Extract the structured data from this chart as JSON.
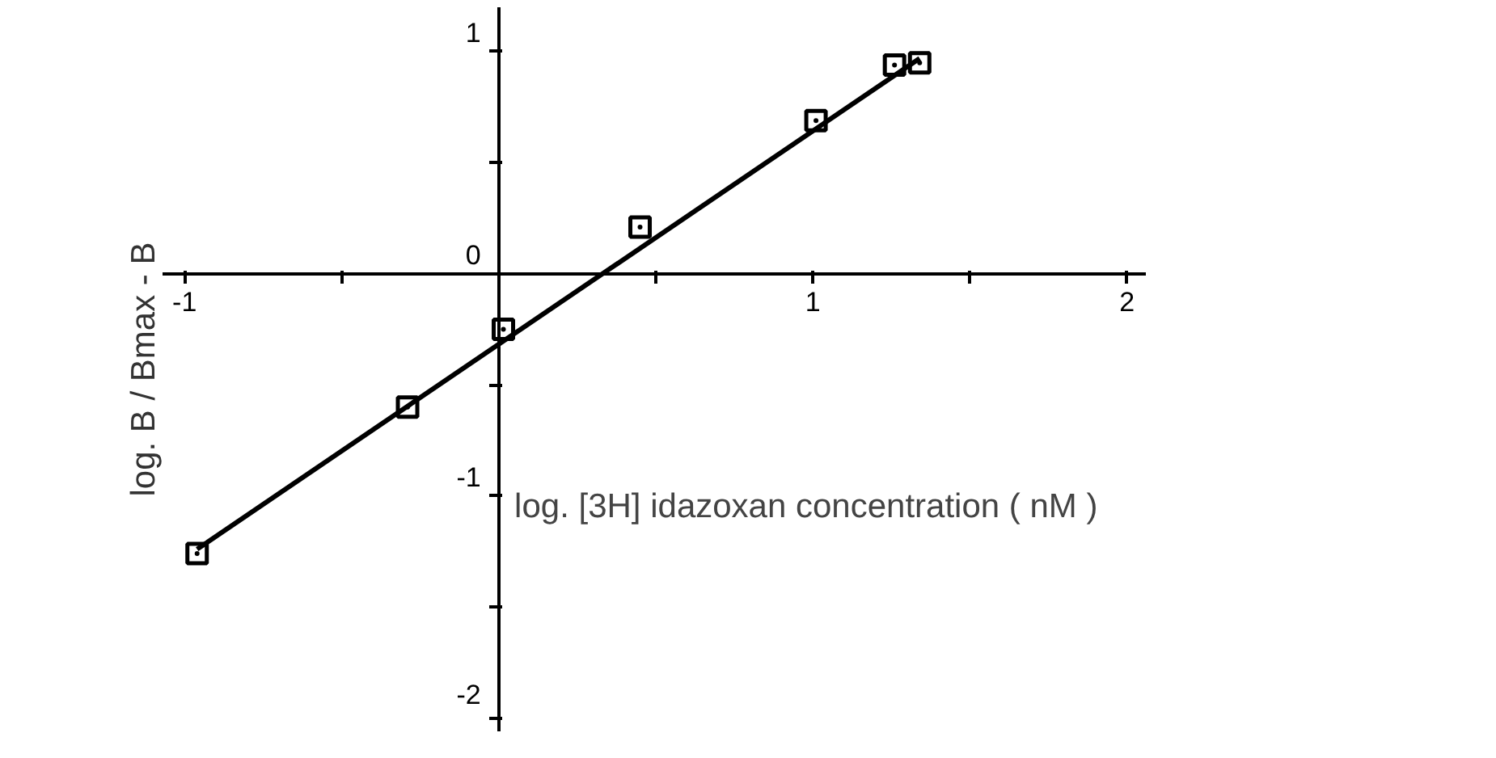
{
  "chart_data": {
    "type": "scatter",
    "xlabel": "log. [3H] idazoxan concentration ( nM )",
    "ylabel": "log. B / Bmax - B",
    "xlim": [
      -1.07,
      2.06
    ],
    "ylim": [
      -2.06,
      1.2
    ],
    "xticks": [
      -1,
      {
        "value": -0.5,
        "label": null
      },
      {
        "value": 0.5,
        "label": null
      },
      1,
      {
        "value": 1.5,
        "label": null
      },
      2
    ],
    "yticks": [
      -2,
      {
        "value": -1.5,
        "label": null
      },
      -1,
      {
        "value": -0.5,
        "label": null
      },
      0,
      {
        "value": 0.5,
        "label": null
      },
      1
    ],
    "grid": false,
    "series": [
      {
        "marker": "square",
        "color": "#000000",
        "x": [
          -0.96,
          -0.29,
          0.015,
          0.45,
          1.01,
          1.26,
          1.34
        ],
        "values": [
          -1.26,
          -0.6,
          -0.25,
          0.21,
          0.69,
          0.94,
          0.95
        ]
      },
      {
        "type": "line",
        "marker": "none",
        "line_style": "solid",
        "color": "#000000",
        "x": [
          -0.96,
          1.34
        ],
        "values": [
          -1.24,
          0.97
        ]
      }
    ]
  }
}
